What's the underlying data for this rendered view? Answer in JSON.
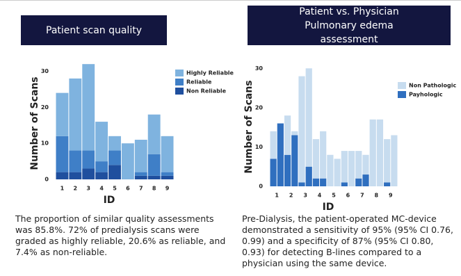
{
  "chart_data": [
    {
      "type": "bar",
      "stacked": true,
      "title": "Patient scan quality",
      "ylabel": "Number of Scans",
      "xlabel": "ID",
      "categories": [
        "1",
        "2",
        "3",
        "4",
        "5",
        "6",
        "7",
        "8",
        "9"
      ],
      "series": [
        {
          "name": "Highly Reliable",
          "color": "#7fb3df",
          "values": [
            12,
            20,
            24,
            11,
            4,
            10,
            9,
            11,
            10
          ]
        },
        {
          "name": "Reliable",
          "color": "#3f7fc7",
          "values": [
            10,
            6,
            5,
            3,
            4,
            0,
            1,
            6,
            1
          ]
        },
        {
          "name": "Non Reliable",
          "color": "#1f4f9e",
          "values": [
            2,
            2,
            3,
            2,
            4,
            0,
            1,
            1,
            1
          ]
        }
      ],
      "ylim": [
        0,
        33
      ],
      "yticks": [
        0,
        10,
        20,
        30
      ],
      "legend": "upper-right",
      "caption": "The proportion of similar quality assessments was 85.8%. 72% of predialysis scans were graded as highly reliable, 20.6% as reliable, and 7.4% as non-reliable."
    },
    {
      "type": "bar",
      "stacked": true,
      "title": "Patient vs. Physician Pulmonary edema assessment",
      "ylabel": "Number of Scans",
      "xlabel": "ID",
      "categories": [
        "1",
        null,
        "2",
        null,
        "3",
        null,
        "4",
        null,
        "5",
        null,
        "6",
        null,
        "7",
        null,
        "8",
        null,
        "9",
        null
      ],
      "series": [
        {
          "name": "Non Pathologic",
          "color": "#c7dcef",
          "values": [
            7,
            0,
            10,
            1,
            27,
            25,
            10,
            12,
            8,
            7,
            8,
            9,
            7,
            5,
            17,
            17,
            11,
            13
          ]
        },
        {
          "name": "Payhologic",
          "color": "#2f6fbf",
          "values": [
            7,
            16,
            8,
            13,
            1,
            5,
            2,
            2,
            0,
            0,
            1,
            0,
            2,
            3,
            0,
            0,
            1,
            0
          ]
        }
      ],
      "ylim": [
        0,
        32
      ],
      "yticks": [
        0,
        10,
        20,
        30
      ],
      "legend": "upper-right",
      "caption": "Pre-Dialysis, the patient-operated MC-device demonstrated a sensitivity of 95% (95% CI 0.76, 0.99) and a specificity of 87% (95% CI 0.80, 0.93) for detecting B-lines compared to a physician using the same device."
    }
  ]
}
